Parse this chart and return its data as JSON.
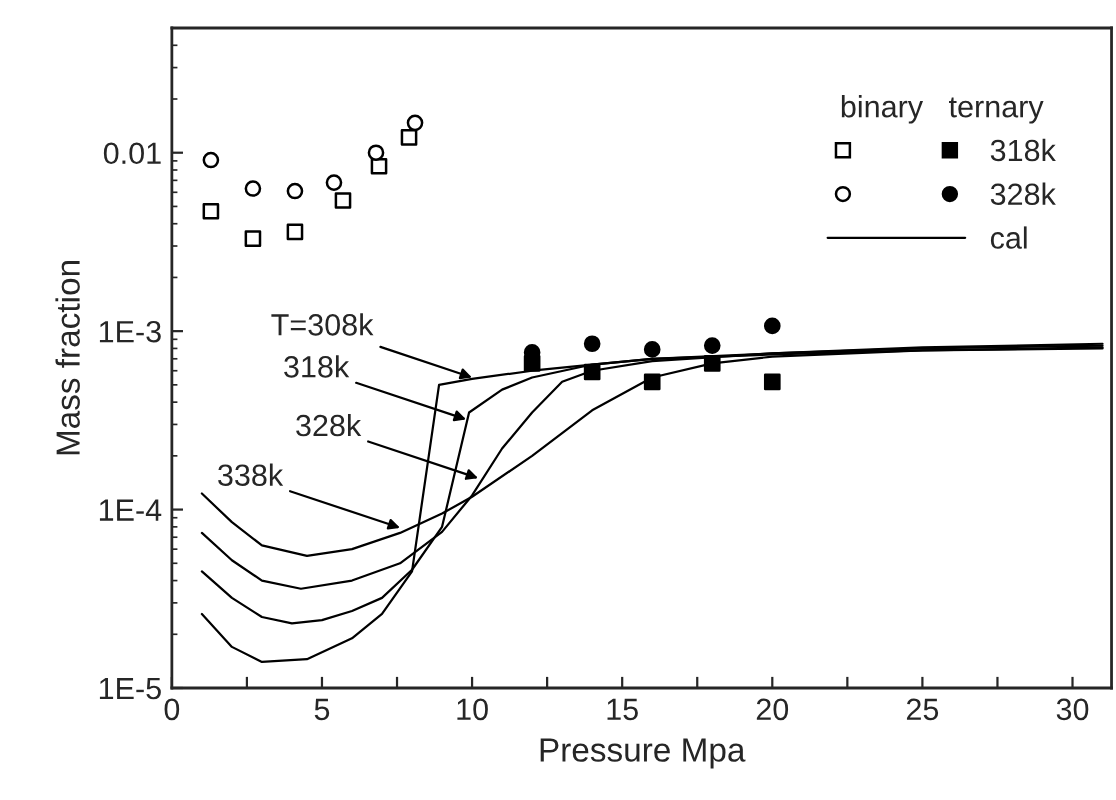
{
  "chart_data": {
    "type": "scatter",
    "xlabel": "Pressure Mpa",
    "ylabel": "Mass fraction",
    "legend_title": "binary   ternary",
    "legend": "top right",
    "log": "y",
    "grid": false,
    "xlim": [
      0,
      31.3
    ],
    "ylim": [
      1e-05,
      0.05
    ],
    "xticks": [
      0,
      {
        "value": 2.5,
        "label": null
      },
      5,
      {
        "value": 7.5,
        "label": null
      },
      10,
      {
        "value": 12.5,
        "label": null
      },
      15,
      {
        "value": 17.5,
        "label": null
      },
      20,
      {
        "value": 22.5,
        "label": null
      },
      25,
      {
        "value": 27.5,
        "label": null
      },
      30
    ],
    "yticks": [
      {
        "value": 1e-05,
        "label": "1E-5"
      },
      {
        "value": 0.0001,
        "label": "1E-4"
      },
      {
        "value": 0.001,
        "label": "1E-3"
      },
      {
        "value": 0.01,
        "label": "0.01"
      }
    ],
    "series": [
      {
        "marker": "square",
        "color": "#000000",
        "x": [
          1.3,
          2.7,
          4.1,
          5.7,
          6.9,
          7.9
        ],
        "values": [
          0.0047,
          0.0033,
          0.0036,
          0.0054,
          0.0084,
          0.0122
        ]
      },
      {
        "marker": "circle",
        "color": "#000000",
        "x": [
          1.3,
          2.7,
          4.1,
          5.4,
          6.8,
          8.1
        ],
        "values": [
          0.0091,
          0.0063,
          0.0061,
          0.0068,
          0.01,
          0.0147
        ]
      },
      {
        "name": "318k",
        "marker": "square",
        "color": "#000000",
        "x": [
          12,
          14,
          16,
          18,
          20
        ],
        "values": [
          0.00066,
          0.00059,
          0.00052,
          0.00066,
          0.00052
        ]
      },
      {
        "name": "328k",
        "marker": "circle",
        "color": "#000000",
        "x": [
          12,
          14,
          16,
          18,
          20
        ],
        "values": [
          0.00076,
          0.00085,
          0.00079,
          0.00083,
          0.00107
        ]
      },
      {
        "type": "line",
        "name": "cal",
        "marker": "none",
        "line_style": "solid",
        "color": "#000000",
        "x": [
          1,
          2,
          3,
          4.5,
          6,
          7,
          8,
          8.9,
          10,
          12,
          14,
          16,
          20,
          25,
          31
        ],
        "values": [
          2.6e-05,
          1.7e-05,
          1.4e-05,
          1.45e-05,
          1.9e-05,
          2.6e-05,
          4.5e-05,
          0.0005,
          0.00054,
          0.0006,
          0.00065,
          0.0007,
          0.00074,
          0.00078,
          0.0008
        ]
      },
      {
        "type": "line",
        "marker": "none",
        "line_style": "solid",
        "color": "#000000",
        "x": [
          1,
          2,
          3,
          4,
          5,
          6,
          7,
          8,
          9,
          9.9,
          11,
          12,
          14,
          16,
          20,
          25,
          31
        ],
        "values": [
          4.5e-05,
          3.2e-05,
          2.5e-05,
          2.3e-05,
          2.4e-05,
          2.7e-05,
          3.2e-05,
          4.6e-05,
          8e-05,
          0.00035,
          0.00047,
          0.00055,
          0.00065,
          0.0007,
          0.00075,
          0.0008,
          0.00083
        ]
      },
      {
        "type": "line",
        "marker": "none",
        "line_style": "solid",
        "color": "#000000",
        "x": [
          1,
          2,
          3,
          4.3,
          6,
          7.6,
          9,
          10,
          11,
          12,
          13,
          14,
          16,
          20,
          25,
          31
        ],
        "values": [
          7.4e-05,
          5.2e-05,
          4e-05,
          3.6e-05,
          4e-05,
          5e-05,
          7.5e-05,
          0.00012,
          0.00022,
          0.00035,
          0.00052,
          0.0006,
          0.00068,
          0.00075,
          0.00081,
          0.00085
        ]
      },
      {
        "type": "line",
        "marker": "none",
        "line_style": "solid",
        "color": "#000000",
        "x": [
          1,
          2,
          3,
          4.5,
          6,
          7.6,
          9,
          10,
          12,
          14,
          16,
          18,
          20,
          25,
          31
        ],
        "values": [
          0.000123,
          8.5e-05,
          6.3e-05,
          5.5e-05,
          6e-05,
          7.4e-05,
          9.5e-05,
          0.000118,
          0.0002,
          0.00036,
          0.00055,
          0.00066,
          0.00072,
          0.00078,
          0.00081
        ]
      }
    ],
    "annotations": [
      {
        "text": "T=308k",
        "x": 10,
        "y": 0.00055
      },
      {
        "text": "318k",
        "x": 9.8,
        "y": 0.00032
      },
      {
        "text": "328k",
        "x": 10.2,
        "y": 0.00015
      },
      {
        "text": "338k",
        "x": 7.6,
        "y": 7.9e-05
      }
    ]
  }
}
